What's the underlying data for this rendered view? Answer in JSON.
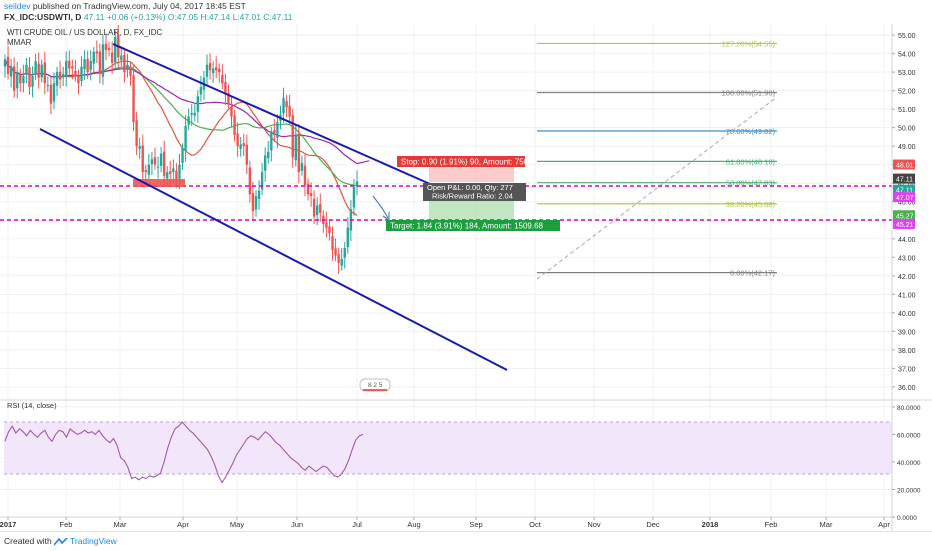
{
  "header": {
    "author": "seildev",
    "published": "published on TradingView.com, July 04, 2017 18:45 EST",
    "symbol": "FX_IDC:USDWTI, D",
    "last": "47.11",
    "change": "+0.06 (+0.13%)",
    "ohlc": "O:47.05 H:47.14 L:47.01 C:47.11"
  },
  "legend": {
    "title": "WTI CRUDE OIL / US DOLLAR, D, FX_IDC",
    "indicator": "MMAR"
  },
  "rsi_label": "RSI (14, close)",
  "footer": {
    "created": "Created with",
    "brand": "TradingView"
  },
  "annotations": {
    "stop": "Stop: 0.90 (1.91%) 90, Amount: 750.7",
    "pnl": "Open P&L: 0.00, Qty: 277",
    "rr": "Risk/Reward Ratio: 2.04",
    "target": "Target: 1.84 (3.91%) 184, Amount: 1509.68",
    "replay": "8 2 5"
  },
  "fib_levels": [
    {
      "label": "127.20%(54.55)",
      "price": 54.55,
      "color": "#b2c73c"
    },
    {
      "label": "100.00%(51.90)",
      "price": 51.9,
      "color": "#808080"
    },
    {
      "label": "78.60%(49.82)",
      "price": 49.82,
      "color": "#3a8fd0"
    },
    {
      "label": "61.80%(48.18)",
      "price": 48.18,
      "color": "#4caf7a"
    },
    {
      "label": "50.00%(47.03)",
      "price": 47.03,
      "color": "#4caf7a"
    },
    {
      "label": "38.20%(45.89)",
      "price": 45.89,
      "color": "#b2c73c"
    },
    {
      "label": "0.00%(42.17)",
      "price": 42.17,
      "color": "#808080"
    }
  ],
  "price_badges": [
    {
      "text": "48.01",
      "price": 48.01,
      "bg": "#ef5350",
      "fg": "#ffffff"
    },
    {
      "text": "47.11",
      "price": 47.25,
      "bg": "#444444",
      "fg": "#ffffff"
    },
    {
      "text": "47.11",
      "price": 46.65,
      "bg": "#26a69a",
      "fg": "#ffffff"
    },
    {
      "text": "47.07",
      "price": 46.25,
      "bg": "#e040fb",
      "fg": "#ffffff"
    },
    {
      "text": "45.27",
      "price": 45.27,
      "bg": "#4caf50",
      "fg": "#ffffff"
    },
    {
      "text": "45.21",
      "price": 44.8,
      "bg": "#e040fb",
      "fg": "#ffffff"
    }
  ],
  "colors": {
    "up": "#26a69a",
    "down": "#ef5350",
    "channel": "#1a1aad",
    "ma_fast": "#e7523b",
    "ma_mid": "#4caf50",
    "ma_slow": "#9c27b0",
    "hline": "#d500d5",
    "rsi": "#a05bb0"
  },
  "chart_data": [
    {
      "type": "candlestick",
      "title": "WTI CRUDE OIL / US DOLLAR, D, FX_IDC",
      "x_ticks": [
        "2017",
        "Feb",
        "Mar",
        "Apr",
        "May",
        "Jun",
        "Jul",
        "Aug",
        "Sep",
        "Oct",
        "Nov",
        "Dec",
        "2018",
        "Feb",
        "Mar",
        "Apr"
      ],
      "y_ticks": [
        "55.00",
        "54.00",
        "53.00",
        "52.00",
        "51.00",
        "50.00",
        "49.00",
        "48.00",
        "47.00",
        "46.00",
        "45.00",
        "44.00",
        "43.00",
        "42.00",
        "41.00",
        "40.00",
        "39.00",
        "38.00",
        "37.00",
        "36.00"
      ],
      "ylim": [
        35.4,
        55.6
      ],
      "close": [
        53.7,
        52.9,
        53.3,
        52.0,
        53.0,
        52.4,
        52.8,
        53.4,
        52.2,
        52.8,
        53.6,
        52.7,
        53.4,
        52.4,
        52.3,
        51.3,
        52.4,
        53.0,
        52.6,
        52.9,
        53.6,
        53.2,
        53.2,
        52.8,
        52.4,
        53.3,
        53.7,
        53.0,
        53.6,
        54.1,
        54.0,
        52.9,
        54.5,
        54.2,
        54.2,
        53.5,
        54.9,
        53.8,
        53.9,
        53.0,
        53.4,
        52.8,
        50.3,
        49.0,
        49.0,
        47.6,
        47.6,
        48.0,
        48.3,
        48.0,
        47.9,
        48.6,
        47.4,
        47.6,
        47.5,
        47.8,
        47.2,
        48.0,
        48.9,
        50.1,
        50.6,
        50.8,
        50.8,
        51.7,
        52.2,
        52.7,
        53.4,
        53.1,
        53.2,
        53.1,
        53.0,
        52.4,
        51.8,
        51.3,
        50.6,
        49.6,
        49.0,
        49.1,
        49.0,
        48.0,
        46.4,
        45.5,
        46.3,
        46.6,
        47.6,
        48.5,
        48.7,
        49.8,
        49.6,
        50.3,
        50.7,
        51.6,
        51.1,
        50.6,
        48.4,
        49.6,
        47.6,
        48.1,
        46.9,
        46.4,
        46.3,
        45.2,
        45.8,
        45.4,
        44.8,
        44.6,
        44.3,
        43.4,
        43.1,
        42.7,
        42.9,
        43.5,
        44.6,
        45.6,
        46.8,
        47.1
      ],
      "rsi": {
        "label": "RSI (14, close)",
        "ylim": [
          0,
          85
        ],
        "y_ticks": [
          "80.0000",
          "60.0000",
          "40.0000",
          "20.0000",
          "0.0000"
        ],
        "band": [
          30,
          70
        ],
        "values": [
          55,
          62,
          66,
          61,
          64,
          62,
          59,
          63,
          60,
          58,
          61,
          63,
          58,
          55,
          60,
          63,
          62,
          58,
          64,
          62,
          60,
          61,
          63,
          61,
          62,
          60,
          63,
          59,
          56,
          54,
          57,
          52,
          43,
          41,
          36,
          28,
          29,
          27,
          29,
          28,
          30,
          29,
          30,
          32,
          40,
          50,
          58,
          64,
          66,
          69,
          66,
          63,
          61,
          58,
          55,
          52,
          49,
          44,
          38,
          30,
          25,
          29,
          34,
          39,
          45,
          49,
          53,
          57,
          59,
          58,
          56,
          59,
          62,
          60,
          57,
          54,
          52,
          49,
          46,
          43,
          41,
          39,
          36,
          34,
          37,
          35,
          33,
          35,
          37,
          36,
          33,
          30,
          29,
          31,
          35,
          41,
          49,
          56,
          59,
          60
        ]
      }
    }
  ]
}
